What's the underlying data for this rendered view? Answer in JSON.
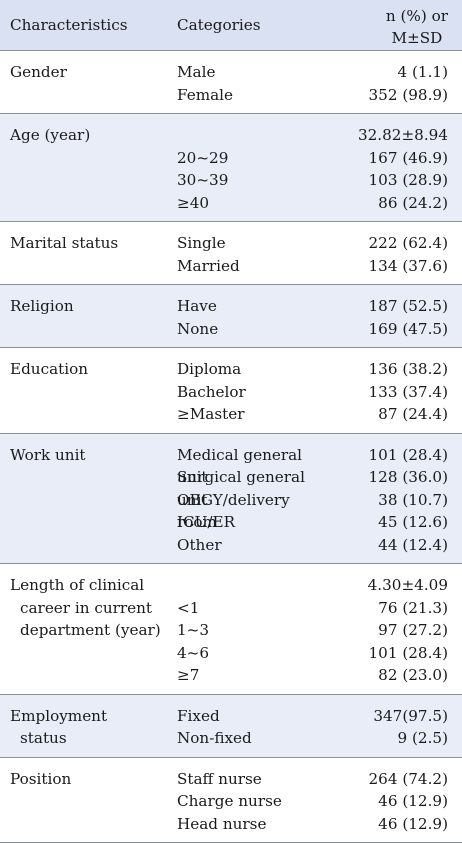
{
  "header": {
    "characteristics": "Characteristics",
    "categories": "Categories",
    "value_line1": "n (%) or",
    "value_line2": "M±SD"
  },
  "groups": [
    {
      "label": [
        "Gender"
      ],
      "rows": [
        {
          "cat": "Male",
          "val": "4 (1.1)"
        },
        {
          "cat": "Female",
          "val": "352 (98.9)"
        }
      ]
    },
    {
      "label": [
        "Age (year)"
      ],
      "rows": [
        {
          "cat": "",
          "val": "32.82±8.94"
        },
        {
          "cat": "20~29",
          "val": "167 (46.9)"
        },
        {
          "cat": "30~39",
          "val": "103 (28.9)"
        },
        {
          "cat": "≥40",
          "val": "86 (24.2)"
        }
      ]
    },
    {
      "label": [
        "Marital status"
      ],
      "rows": [
        {
          "cat": "Single",
          "val": "222 (62.4)"
        },
        {
          "cat": "Married",
          "val": "134 (37.6)"
        }
      ]
    },
    {
      "label": [
        "Religion"
      ],
      "rows": [
        {
          "cat": "Have",
          "val": "187 (52.5)"
        },
        {
          "cat": "None",
          "val": "169 (47.5)"
        }
      ]
    },
    {
      "label": [
        "Education"
      ],
      "rows": [
        {
          "cat": "Diploma",
          "val": "136 (38.2)"
        },
        {
          "cat": "Bachelor",
          "val": "133 (37.4)"
        },
        {
          "cat": "≥Master",
          "val": "87 (24.4)"
        }
      ]
    },
    {
      "label": [
        "Work unit"
      ],
      "rows": [
        {
          "cat": "Medical general unit",
          "val": "101 (28.4)"
        },
        {
          "cat": "Surgical general unit",
          "val": "128 (36.0)"
        },
        {
          "cat": "OBGY/delivery room",
          "val": "38 (10.7)"
        },
        {
          "cat": "ICU/ER",
          "val": "45 (12.6)"
        },
        {
          "cat": "Other",
          "val": "44 (12.4)"
        }
      ]
    },
    {
      "label": [
        "Length of clinical",
        "career in current",
        "department (year)"
      ],
      "rows": [
        {
          "cat": "",
          "val": "4.30±4.09"
        },
        {
          "cat": "<1",
          "val": "76 (21.3)"
        },
        {
          "cat": "1~3",
          "val": "97 (27.2)"
        },
        {
          "cat": "4~6",
          "val": "101 (28.4)"
        },
        {
          "cat": "≥7",
          "val": "82 (23.0)"
        }
      ]
    },
    {
      "label": [
        "Employment",
        "status"
      ],
      "rows": [
        {
          "cat": "Fixed",
          "val": "347(97.5)"
        },
        {
          "cat": "Non-fixed",
          "val": "9 (2.5)"
        }
      ]
    },
    {
      "label": [
        "Position"
      ],
      "rows": [
        {
          "cat": "Staff nurse",
          "val": "264 (74.2)"
        },
        {
          "cat": "Charge nurse",
          "val": "46 (12.9)"
        },
        {
          "cat": "Head nurse",
          "val": "46 (12.9)"
        }
      ]
    }
  ]
}
